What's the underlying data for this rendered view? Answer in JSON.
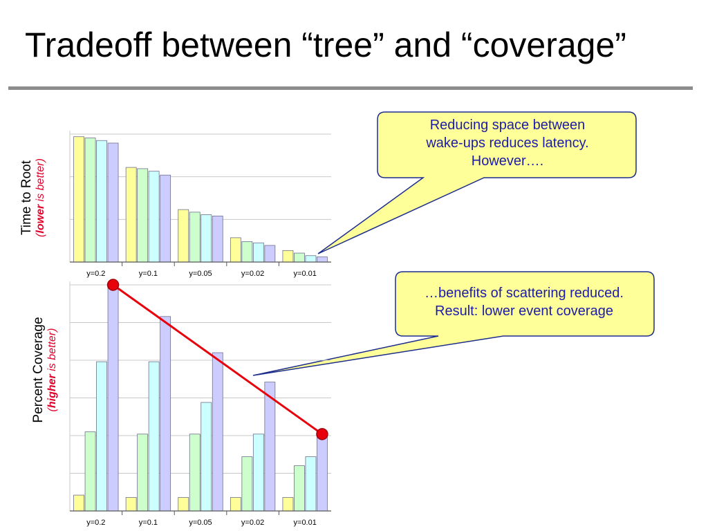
{
  "title": "Tradeoff between “tree” and “coverage”",
  "colors": {
    "series": [
      "#ffff99",
      "#ccffcc",
      "#ccffff",
      "#ccccff"
    ],
    "trend_line": "#e8000b",
    "callout_fill": "#ffff99",
    "callout_border": "#1c2d8c",
    "callout_text": "#1c1ca8",
    "emphasis_text": "#e0002a"
  },
  "top_axis": {
    "label": "Time to Root",
    "note_prefix": "(",
    "note_bold": "lower",
    "note_rest": " is better)"
  },
  "bottom_axis": {
    "label": "Percent Coverage",
    "note_prefix": "(",
    "note_bold": "higher",
    "note_rest": " is better)"
  },
  "callouts": {
    "top": [
      "Reducing space between",
      "wake-ups reduces latency.",
      "However…."
    ],
    "bottom": [
      "…benefits of scattering reduced.",
      "Result: lower event coverage"
    ]
  },
  "chart_data": [
    {
      "type": "bar",
      "categories": [
        "y=0.2",
        "y=0.1",
        "y=0.05",
        "y=0.02",
        "y=0.01"
      ],
      "ylim": [
        0,
        100
      ],
      "grid": true,
      "series": [
        {
          "values": [
            98,
            74,
            41,
            19,
            9
          ]
        },
        {
          "values": [
            97,
            73,
            39,
            16,
            7
          ]
        },
        {
          "values": [
            95,
            71,
            37,
            15,
            5
          ]
        },
        {
          "values": [
            93,
            68,
            36,
            13,
            4
          ]
        }
      ]
    },
    {
      "type": "bar",
      "categories": [
        "y=0.2",
        "y=0.1",
        "y=0.05",
        "y=0.02",
        "y=0.01"
      ],
      "ylim": [
        0,
        100
      ],
      "grid": true,
      "series": [
        {
          "values": [
            7,
            6,
            6,
            6,
            6
          ]
        },
        {
          "values": [
            35,
            34,
            34,
            24,
            20
          ]
        },
        {
          "values": [
            66,
            66,
            48,
            34,
            24
          ]
        },
        {
          "values": [
            100,
            86,
            70,
            57,
            34
          ]
        }
      ],
      "annotation": {
        "type": "trend-line",
        "from": {
          "category": "y=0.2",
          "series_index": 3
        },
        "to": {
          "category": "y=0.01",
          "series_index": 3
        }
      }
    }
  ]
}
